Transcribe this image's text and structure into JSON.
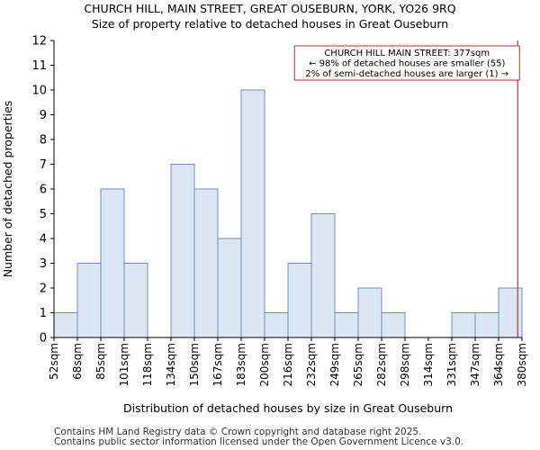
{
  "header": {
    "title": "CHURCH HILL, MAIN STREET, GREAT OUSEBURN, YORK, YO26 9RQ",
    "subtitle": "Size of property relative to detached houses in Great Ouseburn"
  },
  "chart_data": {
    "type": "bar",
    "title": "CHURCH HILL, MAIN STREET, GREAT OUSEBURN, YORK, YO26 9RQ",
    "subtitle": "Size of property relative to detached houses in Great Ouseburn",
    "xlabel": "Distribution of detached houses by size in Great Ouseburn",
    "ylabel": "Number of detached properties",
    "bin_edges": [
      "52sqm",
      "68sqm",
      "85sqm",
      "101sqm",
      "118sqm",
      "134sqm",
      "150sqm",
      "167sqm",
      "183sqm",
      "200sqm",
      "216sqm",
      "232sqm",
      "249sqm",
      "265sqm",
      "282sqm",
      "298sqm",
      "314sqm",
      "331sqm",
      "347sqm",
      "364sqm",
      "380sqm"
    ],
    "values": [
      1,
      3,
      6,
      3,
      0,
      7,
      6,
      4,
      10,
      1,
      3,
      5,
      1,
      2,
      1,
      0,
      0,
      1,
      1,
      2
    ],
    "ylim": [
      0,
      12
    ],
    "yticks": [
      0,
      1,
      2,
      3,
      4,
      5,
      6,
      7,
      8,
      9,
      10,
      11,
      12
    ],
    "grid": false,
    "bar_fill": "#dce6f5",
    "bar_stroke": "#6f8fc7",
    "marker": {
      "value_sqm": 377,
      "color": "#c0283a"
    },
    "annotation": {
      "lines": [
        "CHURCH HILL MAIN STREET: 377sqm",
        "← 98% of detached houses are smaller (55)",
        "2% of semi-detached houses are larger (1) →"
      ],
      "border_color": "#c0283a"
    }
  },
  "footer": {
    "line1": "Contains HM Land Registry data © Crown copyright and database right 2025.",
    "line2": "Contains public sector information licensed under the Open Government Licence v3.0."
  }
}
